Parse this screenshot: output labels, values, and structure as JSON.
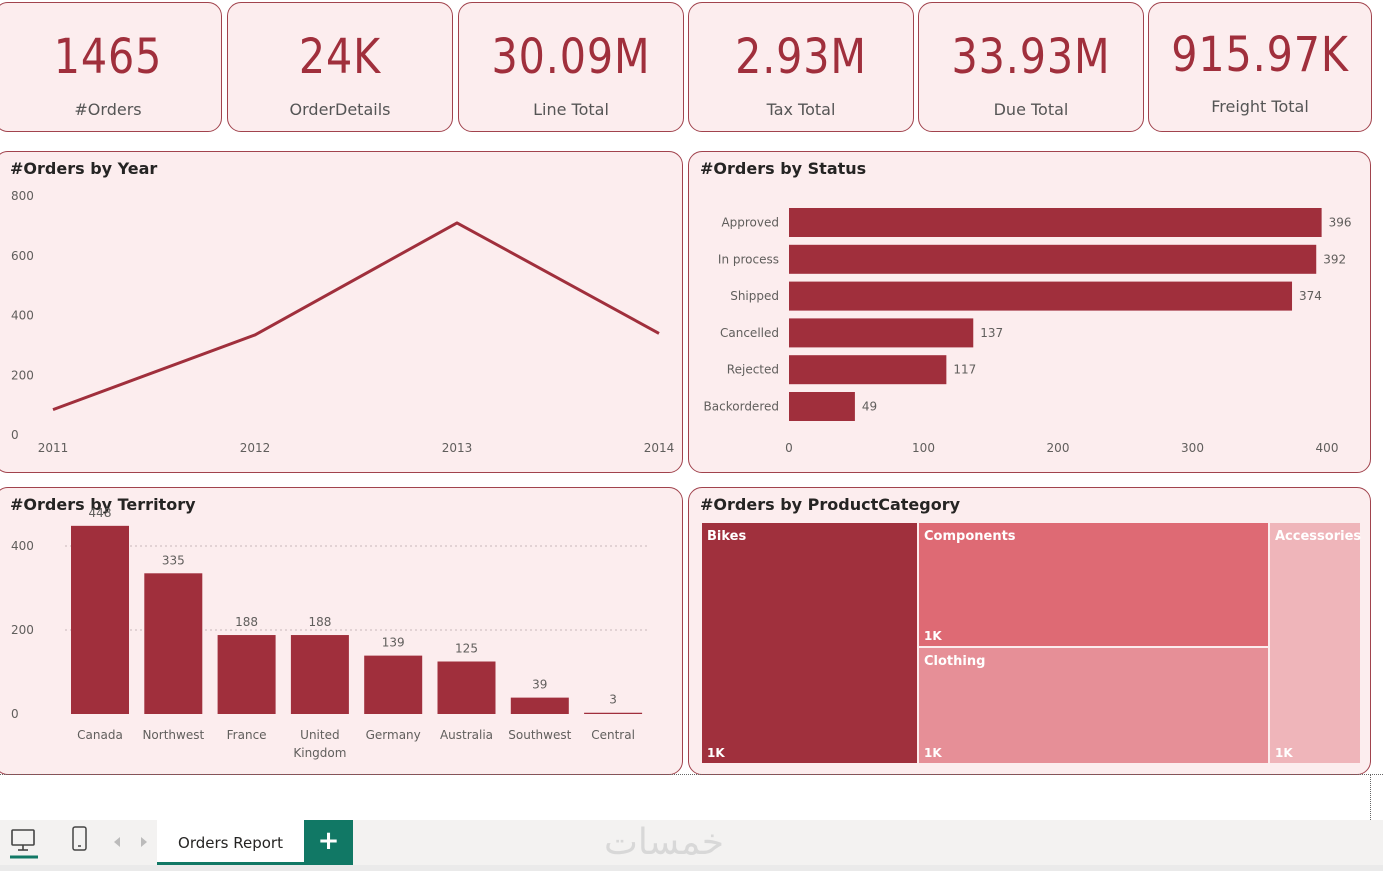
{
  "kpis": [
    {
      "value": "1465",
      "label": "#Orders"
    },
    {
      "value": "24K",
      "label": "OrderDetails"
    },
    {
      "value": "30.09M",
      "label": "Line Total"
    },
    {
      "value": "2.93M",
      "label": "Tax Total"
    },
    {
      "value": "33.93M",
      "label": "Due Total"
    },
    {
      "value": "915.97K",
      "label": "Freight Total"
    }
  ],
  "chart_data": [
    {
      "type": "line",
      "title": "#Orders by Year",
      "x": [
        "2011",
        "2012",
        "2013",
        "2014"
      ],
      "values": [
        85,
        335,
        710,
        340
      ],
      "y_ticks": [
        "0",
        "200",
        "400",
        "600",
        "800"
      ],
      "ylim": [
        0,
        800
      ],
      "xlabel": "",
      "ylabel": ""
    },
    {
      "type": "bar",
      "orientation": "horizontal",
      "title": "#Orders by Status",
      "categories": [
        "Approved",
        "In process",
        "Shipped",
        "Cancelled",
        "Rejected",
        "Backordered"
      ],
      "values": [
        396,
        392,
        374,
        137,
        117,
        49
      ],
      "value_labels": [
        "396",
        "392",
        "374",
        "137",
        "117",
        "49"
      ],
      "x_ticks": [
        "0",
        "100",
        "200",
        "300",
        "400"
      ],
      "xlim": [
        0,
        400
      ]
    },
    {
      "type": "bar",
      "title": "#Orders by Territory",
      "categories": [
        "Canada",
        "Northwest",
        "France",
        "United Kingdom",
        "Germany",
        "Australia",
        "Southwest",
        "Central"
      ],
      "category_lines": [
        [
          "Canada"
        ],
        [
          "Northwest"
        ],
        [
          "France"
        ],
        [
          "United",
          "Kingdom"
        ],
        [
          "Germany"
        ],
        [
          "Australia"
        ],
        [
          "Southwest"
        ],
        [
          "Central"
        ]
      ],
      "values": [
        448,
        335,
        188,
        188,
        139,
        125,
        39,
        3
      ],
      "value_labels": [
        "448",
        "335",
        "188",
        "188",
        "139",
        "125",
        "39",
        "3"
      ],
      "y_ticks": [
        "0",
        "200",
        "400"
      ],
      "ylim": [
        0,
        500
      ]
    },
    {
      "type": "treemap",
      "title": "#Orders by ProductCategory",
      "items": [
        {
          "name": "Bikes",
          "label": "1K",
          "color": "#a0303d"
        },
        {
          "name": "Components",
          "label": "1K",
          "color": "#de6a74"
        },
        {
          "name": "Clothing",
          "label": "1K",
          "color": "#e68f97"
        },
        {
          "name": "Accessories",
          "label": "1K",
          "color": "#efb5ba"
        }
      ]
    }
  ],
  "colors": {
    "accent": "#a02f3c",
    "card_bg": "#fcedee",
    "tab_green": "#117865"
  },
  "footer": {
    "tab_label": "Orders Report",
    "add_label": "+",
    "watermark": "خمسات",
    "icons": [
      "desktop-icon",
      "phone-icon",
      "chevron-left-icon",
      "chevron-right-icon"
    ]
  }
}
